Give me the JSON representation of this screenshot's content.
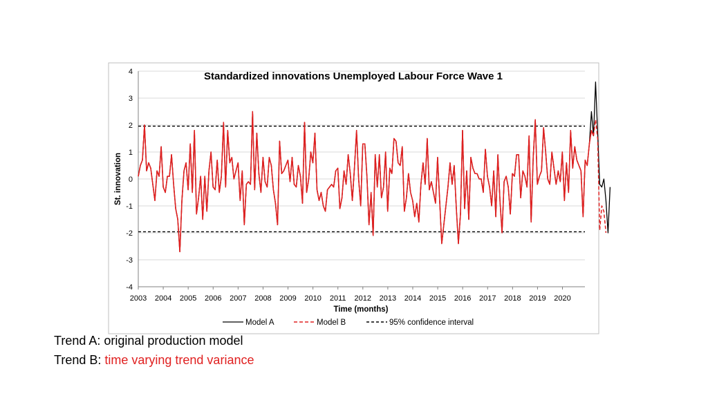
{
  "chart_data": {
    "type": "line",
    "title": "Standardized innovations Unemployed Labour Force Wave 1",
    "xlabel": "Time (months)",
    "ylabel": "St. innovation",
    "xlim": [
      2003,
      2020.9
    ],
    "ylim": [
      -4,
      4
    ],
    "x_ticks": [
      "2003",
      "2004",
      "2005",
      "2006",
      "2007",
      "2008",
      "2009",
      "2010",
      "2011",
      "2012",
      "2013",
      "2014",
      "2015",
      "2016",
      "2017",
      "2018",
      "2019",
      "2020"
    ],
    "y_ticks": [
      "4",
      "3",
      "2",
      "1",
      "0",
      "-1",
      "-2",
      "-3",
      "-4"
    ],
    "grid": "horizontal",
    "legend_placement": "bottom",
    "x_start": 2003.0,
    "x_step": 0.0833,
    "series": [
      {
        "name": "Model A",
        "color": "#000000",
        "dash": "solid",
        "values": [
          0.1,
          0.5,
          0.7,
          2.0,
          0.3,
          0.6,
          0.4,
          -0.2,
          -0.8,
          0.3,
          0.1,
          1.2,
          -0.3,
          -0.5,
          0.1,
          0.1,
          0.9,
          -0.2,
          -1.1,
          -1.5,
          -2.7,
          -0.8,
          0.3,
          0.6,
          -0.4,
          1.3,
          -0.5,
          1.8,
          -1.3,
          -0.7,
          0.1,
          -1.5,
          0.1,
          -1.2,
          0.3,
          1.0,
          -0.3,
          -0.4,
          0.7,
          -0.5,
          0.1,
          2.1,
          -0.3,
          1.8,
          0.6,
          0.8,
          0.0,
          0.3,
          0.6,
          -0.8,
          0.3,
          -1.7,
          -0.2,
          -0.1,
          -0.2,
          2.5,
          -0.4,
          1.7,
          0.2,
          -0.5,
          0.8,
          -0.1,
          -0.3,
          0.8,
          0.5,
          -0.4,
          -0.9,
          -1.7,
          1.4,
          0.2,
          0.3,
          0.5,
          0.7,
          -0.1,
          0.8,
          -0.2,
          -0.3,
          0.5,
          0.1,
          -0.9,
          2.1,
          -0.5,
          0.0,
          1.0,
          0.6,
          1.7,
          -0.4,
          -0.8,
          -0.5,
          -1.0,
          -1.2,
          -0.4,
          -0.3,
          -0.2,
          -0.3,
          0.3,
          0.4,
          -1.1,
          -0.7,
          0.3,
          -0.2,
          0.9,
          0.2,
          -0.8,
          0.4,
          1.8,
          0.0,
          -1.0,
          1.3,
          1.3,
          0.1,
          -1.7,
          -0.5,
          -2.1,
          0.9,
          -0.3,
          0.9,
          -0.7,
          -0.3,
          1.0,
          -1.2,
          0.4,
          0.2,
          1.5,
          1.4,
          0.6,
          0.5,
          1.2,
          -1.2,
          -0.7,
          0.2,
          -0.5,
          -0.8,
          -1.4,
          -0.9,
          -1.6,
          -0.2,
          0.6,
          -0.2,
          1.5,
          -0.4,
          -0.1,
          -0.5,
          -0.9,
          0.8,
          -0.8,
          -2.4,
          -1.7,
          -1.0,
          -0.3,
          0.6,
          -0.2,
          0.5,
          -1.1,
          -2.4,
          -1.3,
          1.8,
          -1.1,
          0.3,
          -1.5,
          0.8,
          0.4,
          0.2,
          0.2,
          0.0,
          0.0,
          -0.5,
          1.1,
          0.1,
          -0.3,
          -1.0,
          0.3,
          -1.4,
          0.9,
          -0.8,
          -2.0,
          -0.1,
          0.1,
          -0.3,
          -1.3,
          0.2,
          0.1,
          0.9,
          0.9,
          -0.7,
          0.3,
          0.1,
          -0.3,
          1.6,
          -1.6,
          0.8,
          2.2,
          -0.2,
          0.1,
          0.3,
          1.9,
          1.0,
          0.0,
          -0.2,
          1.0,
          0.4,
          -0.2,
          0.3,
          -0.1,
          1.0,
          -0.8,
          0.6,
          -0.5,
          1.8,
          0.4,
          1.2,
          0.7,
          0.5,
          0.3,
          -1.4,
          0.7,
          0.5,
          1.3,
          2.5,
          1.6,
          3.6,
          1.7,
          -0.2,
          -0.3,
          0.0,
          -0.8,
          -2.0,
          -0.3
        ],
        "note_excluded": []
      },
      {
        "name": "Model B",
        "color": "#e02020",
        "dash": "dashed",
        "values": [
          0.1,
          0.5,
          0.7,
          2.0,
          0.3,
          0.6,
          0.4,
          -0.2,
          -0.8,
          0.3,
          0.1,
          1.2,
          -0.3,
          -0.5,
          0.1,
          0.1,
          0.9,
          -0.2,
          -1.1,
          -1.5,
          -2.7,
          -0.8,
          0.3,
          0.6,
          -0.4,
          1.3,
          -0.5,
          1.8,
          -1.3,
          -0.7,
          0.1,
          -1.5,
          0.1,
          -1.2,
          0.3,
          1.0,
          -0.3,
          -0.4,
          0.7,
          -0.5,
          0.1,
          2.1,
          -0.3,
          1.8,
          0.6,
          0.8,
          0.0,
          0.3,
          0.6,
          -0.8,
          0.3,
          -1.7,
          -0.2,
          -0.1,
          -0.2,
          2.5,
          -0.4,
          1.7,
          0.2,
          -0.5,
          0.8,
          -0.1,
          -0.3,
          0.8,
          0.5,
          -0.4,
          -0.9,
          -1.7,
          1.4,
          0.2,
          0.3,
          0.5,
          0.7,
          -0.1,
          0.8,
          -0.2,
          -0.3,
          0.5,
          0.1,
          -0.9,
          2.1,
          -0.5,
          0.0,
          1.0,
          0.6,
          1.7,
          -0.4,
          -0.8,
          -0.5,
          -1.0,
          -1.2,
          -0.4,
          -0.3,
          -0.2,
          -0.3,
          0.3,
          0.4,
          -1.1,
          -0.7,
          0.3,
          -0.2,
          0.9,
          0.2,
          -0.8,
          0.4,
          1.8,
          0.0,
          -1.0,
          1.3,
          1.3,
          0.1,
          -1.7,
          -0.5,
          -2.1,
          0.9,
          -0.3,
          0.9,
          -0.7,
          -0.3,
          1.0,
          -1.2,
          0.4,
          0.2,
          1.5,
          1.4,
          0.6,
          0.5,
          1.2,
          -1.2,
          -0.7,
          0.2,
          -0.5,
          -0.8,
          -1.4,
          -0.9,
          -1.6,
          -0.2,
          0.6,
          -0.2,
          1.5,
          -0.4,
          -0.1,
          -0.5,
          -0.9,
          0.8,
          -0.8,
          -2.4,
          -1.7,
          -1.0,
          -0.3,
          0.6,
          -0.2,
          0.5,
          -1.1,
          -2.4,
          -1.3,
          1.8,
          -1.1,
          0.3,
          -1.5,
          0.8,
          0.4,
          0.2,
          0.2,
          0.0,
          0.0,
          -0.5,
          1.1,
          0.1,
          -0.3,
          -1.0,
          0.3,
          -1.4,
          0.9,
          -0.8,
          -2.0,
          -0.1,
          0.1,
          -0.3,
          -1.3,
          0.2,
          0.1,
          0.9,
          0.9,
          -0.7,
          0.3,
          0.1,
          -0.3,
          1.6,
          -1.6,
          0.8,
          2.2,
          -0.2,
          0.1,
          0.3,
          1.9,
          1.0,
          0.0,
          -0.2,
          1.0,
          0.4,
          -0.2,
          0.3,
          -0.1,
          1.0,
          -0.8,
          0.6,
          -0.5,
          1.8,
          0.4,
          1.2,
          0.7,
          0.5,
          0.3,
          -1.4,
          0.7,
          0.5,
          1.3,
          1.8,
          1.6,
          2.2,
          1.5,
          -1.9,
          -1.0,
          -1.2,
          -2.0
        ]
      },
      {
        "name": "95% confidence interval",
        "color": "#000000",
        "dash": "dashed",
        "values_constant": [
          1.96,
          -1.96
        ]
      }
    ]
  },
  "captions": {
    "trend_a": "Trend A: original production model",
    "trend_b_prefix": "Trend B: ",
    "trend_b_highlight": "time varying trend variance",
    "trend_b_highlight_color": "#e02020"
  }
}
